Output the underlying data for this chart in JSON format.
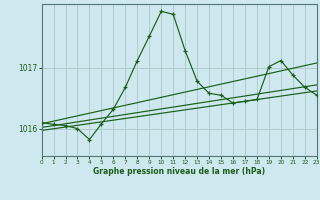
{
  "title": "Graphe pression niveau de la mer (hPa)",
  "bg_color": "#cfe8ef",
  "grid_color": "#b0cccc",
  "line_color": "#1a5e1a",
  "x_min": 0,
  "x_max": 23,
  "y_min": 1015.55,
  "y_max": 1018.05,
  "y_ticks": [
    1016,
    1017
  ],
  "x_ticks": [
    0,
    1,
    2,
    3,
    4,
    5,
    6,
    7,
    8,
    9,
    10,
    11,
    12,
    13,
    14,
    15,
    16,
    17,
    18,
    19,
    20,
    21,
    22,
    23
  ],
  "y_main": [
    1016.1,
    1016.07,
    1016.05,
    1016.0,
    1015.82,
    1016.08,
    1016.32,
    1016.68,
    1017.12,
    1017.52,
    1017.93,
    1017.88,
    1017.28,
    1016.78,
    1016.58,
    1016.55,
    1016.42,
    1016.45,
    1016.48,
    1017.02,
    1017.12,
    1016.88,
    1016.68,
    1016.55
  ],
  "x_main": [
    0,
    1,
    2,
    3,
    4,
    5,
    6,
    7,
    8,
    9,
    10,
    11,
    12,
    13,
    14,
    15,
    16,
    17,
    18,
    19,
    20,
    21,
    22,
    23
  ],
  "trend1_x": [
    0,
    23
  ],
  "trend1_y": [
    1016.02,
    1016.72
  ],
  "trend2_x": [
    0,
    23
  ],
  "trend2_y": [
    1015.97,
    1016.62
  ],
  "trend3_x": [
    0,
    23
  ],
  "trend3_y": [
    1016.08,
    1017.08
  ]
}
